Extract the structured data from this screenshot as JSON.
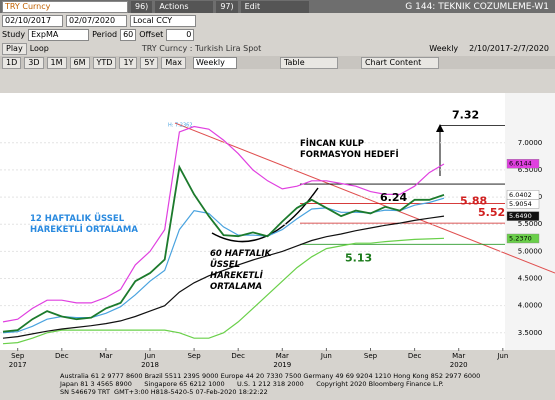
{
  "header": {
    "ticker": "TRY Curncy",
    "actions_num": "96)",
    "actions": "Actions",
    "edit_num": "97)",
    "edit": "Edit",
    "page_title": "G 144: TEKNIK COZUMLEME-W1",
    "start_date": "02/10/2017",
    "end_date": "02/07/2020",
    "currency": "Local CCY",
    "study_label": "Study",
    "study": "ExpMA",
    "period_label": "Period",
    "period": 60,
    "offset_label": "Offset",
    "offset": 0,
    "play": "Play",
    "loop": "Loop",
    "security": "TRY Curncy : Turkish Lira Spot",
    "frequency": "Weekly",
    "range": "2/10/2017-2/7/2020",
    "ranges": [
      "1D",
      "3D",
      "1M",
      "6M",
      "YTD",
      "1Y",
      "5Y",
      "Max"
    ],
    "frequency_select": "Weekly",
    "table": "Table",
    "chart_content": "Chart Content"
  },
  "chart_data": {
    "type": "line",
    "categories": [
      null,
      "Sep",
      null,
      null,
      "Dec",
      null,
      null,
      "Mar",
      null,
      null,
      "Jun",
      null,
      null,
      "Sep",
      null,
      null,
      "Dec",
      null,
      null,
      "Mar",
      null,
      null,
      "Jun",
      null,
      null,
      "Sep",
      null,
      null,
      "Dec",
      null,
      null,
      "Mar",
      null,
      null,
      "Jun"
    ],
    "years": [
      "2017",
      "2018",
      "2019",
      "2020"
    ],
    "series": [
      {
        "color": "#6ad04a",
        "values": [
          3.3,
          3.32,
          3.4,
          3.5,
          3.55,
          3.55,
          3.55,
          3.55,
          3.55,
          3.55,
          3.55,
          3.55,
          3.5,
          3.4,
          3.4,
          3.5,
          3.7,
          3.95,
          4.2,
          4.45,
          4.7,
          4.9,
          5.05,
          5.1,
          5.15,
          5.15,
          5.18,
          5.2,
          5.22,
          5.23,
          5.24,
          null,
          null,
          null,
          null
        ]
      },
      {
        "color": "#e040e0",
        "values": [
          3.7,
          3.75,
          3.95,
          4.1,
          4.1,
          4.05,
          4.05,
          4.15,
          4.3,
          4.75,
          5.0,
          5.4,
          7.2,
          7.3,
          7.25,
          7.05,
          6.8,
          6.5,
          6.3,
          6.15,
          6.2,
          6.3,
          6.3,
          6.25,
          6.2,
          6.1,
          6.05,
          6.05,
          6.2,
          6.45,
          6.61,
          null,
          null,
          null,
          null
        ]
      },
      {
        "color": "#111111",
        "values": [
          3.4,
          3.43,
          3.48,
          3.53,
          3.57,
          3.6,
          3.63,
          3.67,
          3.72,
          3.8,
          3.9,
          4.0,
          4.25,
          4.42,
          4.55,
          4.65,
          4.75,
          4.84,
          4.92,
          5.0,
          5.1,
          5.2,
          5.27,
          5.32,
          5.38,
          5.43,
          5.48,
          5.52,
          5.57,
          5.61,
          5.65,
          null,
          null,
          null,
          null
        ]
      },
      {
        "color": "#4aa3df",
        "values": [
          3.5,
          3.52,
          3.62,
          3.75,
          3.8,
          3.78,
          3.78,
          3.86,
          3.98,
          4.2,
          4.45,
          4.65,
          5.4,
          5.75,
          5.7,
          5.45,
          5.3,
          5.3,
          5.28,
          5.4,
          5.6,
          5.78,
          5.8,
          5.72,
          5.72,
          5.71,
          5.76,
          5.75,
          5.85,
          5.9,
          5.98,
          null,
          null,
          null,
          null
        ]
      },
      {
        "color": "#1c7a2c",
        "values": [
          3.52,
          3.55,
          3.75,
          3.9,
          3.8,
          3.75,
          3.78,
          3.95,
          4.05,
          4.45,
          4.6,
          4.85,
          6.55,
          6.05,
          5.65,
          5.3,
          5.28,
          5.35,
          5.28,
          5.55,
          5.8,
          5.95,
          5.8,
          5.65,
          5.75,
          5.7,
          5.82,
          5.75,
          5.95,
          5.95,
          6.04,
          null,
          null,
          null,
          null
        ]
      }
    ],
    "ylim": [
      3.22,
      7.88
    ],
    "yticks": [
      {
        "value": 3.5,
        "label": "3.5000"
      },
      {
        "value": 4,
        "label": "4.0000"
      },
      {
        "value": 4.5,
        "label": "4.5000"
      },
      {
        "value": 5,
        "label": "5.0000"
      },
      {
        "value": 5.5,
        "label": "5.5000"
      },
      {
        "value": 6,
        "label": "6.0000"
      },
      {
        "value": 6.5,
        "label": "6.5000"
      },
      {
        "value": 7,
        "label": "7.0000"
      }
    ],
    "last_prices": {
      "values": [
        6.6144,
        6.0402,
        5.9054,
        5.649,
        5.237
      ],
      "value_labels": [
        "6.6144",
        "6.0402",
        "5.9054",
        "5.6490",
        "5.2370"
      ],
      "colors": [
        "#e040e0",
        "#ffffff",
        "#ffffff",
        "#111111",
        "#6ad04a"
      ]
    },
    "levels": {
      "values": [
        7.32,
        6.24,
        5.88,
        5.52,
        5.13
      ],
      "colors": [
        "#000000",
        "#000000",
        "#d02020",
        "#d02020",
        "#2a9a2a"
      ]
    },
    "high_label": "H: 7.2362",
    "annotations": [
      "FİNCAN KULP FORMASYON HEDEFİ",
      "12 HAFTALIK ÜSSEL HAREKETLİ ORTALAMA",
      "60 HAFTALIK ÜSSEL HAREKETLİ ORTALAMA"
    ]
  },
  "footer": {
    "lines": [
      "Australia 61 2 9777 8600 Brazil 5511 2395 9000 Europe 44 20 7330 7500 Germany 49 69 9204 1210 Hong Kong 852 2977 6000",
      "Japan 81 3 4565 8900      Singapore 65 6212 1000      U.S. 1 212 318 2000      Copyright 2020 Bloomberg Finance L.P.",
      "SN 546679 TRT  GMT+3:00 H818-5420-5 07-Feb-2020 18:22:22"
    ]
  }
}
